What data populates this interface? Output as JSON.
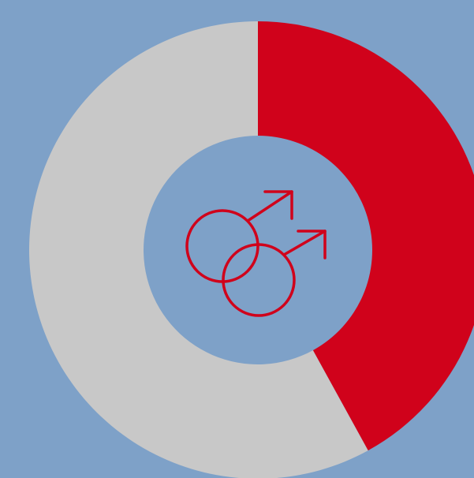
{
  "chart_data": {
    "type": "donut",
    "values": [
      42,
      58
    ],
    "colors": [
      "#d0021b",
      "#c8c8c8"
    ]
  }
}
